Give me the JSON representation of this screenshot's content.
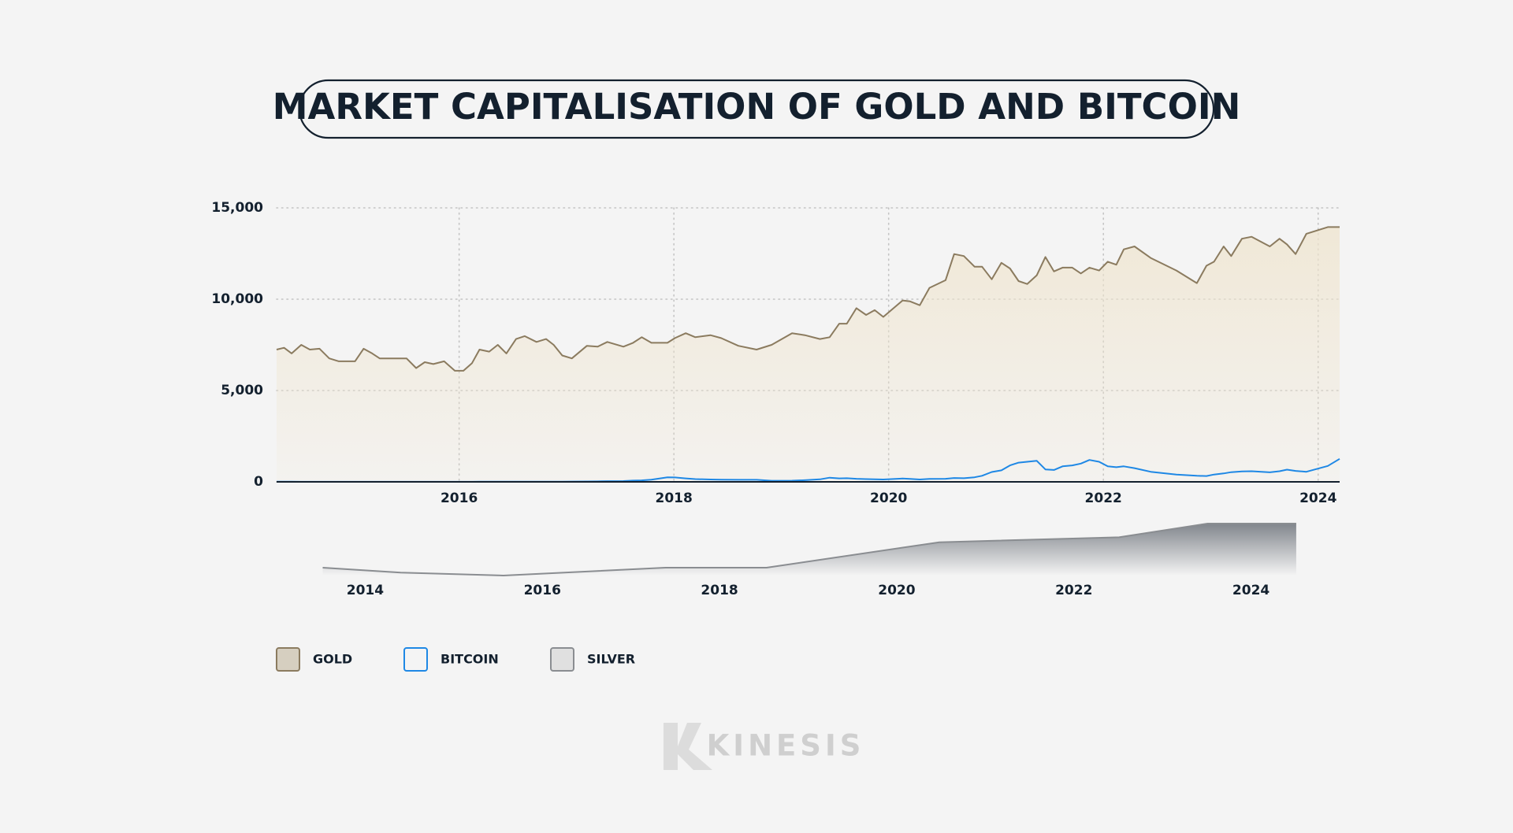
{
  "chart_data": [
    {
      "type": "area",
      "title": "MARKET CAPITALISATION OF GOLD AND BITCOIN",
      "x": [
        2014.3,
        2014.37,
        2014.44,
        2014.53,
        2014.61,
        2014.7,
        2014.79,
        2014.88,
        2015.03,
        2015.11,
        2015.19,
        2015.26,
        2015.51,
        2015.6,
        2015.68,
        2015.76,
        2015.86,
        2015.96,
        2016.04,
        2016.12,
        2016.19,
        2016.28,
        2016.36,
        2016.44,
        2016.53,
        2016.61,
        2016.72,
        2016.81,
        2016.88,
        2016.96,
        2017.05,
        2017.19,
        2017.29,
        2017.38,
        2017.53,
        2017.62,
        2017.7,
        2017.79,
        2017.94,
        2018.01,
        2018.11,
        2018.2,
        2018.34,
        2018.44,
        2018.6,
        2018.77,
        2018.91,
        2019.1,
        2019.22,
        2019.36,
        2019.45,
        2019.54,
        2019.61,
        2019.7,
        2019.79,
        2019.87,
        2019.95,
        2020.13,
        2020.2,
        2020.29,
        2020.38,
        2020.53,
        2020.61,
        2020.7,
        2020.8,
        2020.87,
        2020.96,
        2021.05,
        2021.13,
        2021.21,
        2021.29,
        2021.38,
        2021.46,
        2021.54,
        2021.62,
        2021.71,
        2021.79,
        2021.87,
        2021.96,
        2022.04,
        2022.12,
        2022.19,
        2022.29,
        2022.44,
        2022.68,
        2022.87,
        2022.96,
        2023.03,
        2023.12,
        2023.19,
        2023.29,
        2023.38,
        2023.55,
        2023.64,
        2023.71,
        2023.79,
        2023.89,
        2024.09,
        2024.2
      ],
      "series": [
        {
          "name": "GOLD",
          "color": "#8b7b5f",
          "fill_color": "#d6cfc0",
          "area": true,
          "values": [
            7240,
            7340,
            7030,
            7500,
            7240,
            7290,
            6760,
            6600,
            6600,
            7290,
            7030,
            6760,
            6760,
            6230,
            6550,
            6450,
            6600,
            6080,
            6080,
            6500,
            7240,
            7130,
            7500,
            7030,
            7820,
            7980,
            7660,
            7820,
            7500,
            6920,
            6760,
            7450,
            7400,
            7660,
            7400,
            7610,
            7920,
            7610,
            7610,
            7870,
            8140,
            7920,
            8030,
            7870,
            7450,
            7240,
            7500,
            8140,
            8030,
            7820,
            7920,
            8660,
            8660,
            9510,
            9140,
            9400,
            9030,
            9930,
            9880,
            9670,
            10620,
            11040,
            12470,
            12360,
            11780,
            11780,
            11090,
            11990,
            11680,
            10990,
            10830,
            11310,
            12310,
            11520,
            11730,
            11730,
            11410,
            11730,
            11570,
            12050,
            11890,
            12730,
            12890,
            12260,
            11570,
            10880,
            11830,
            12050,
            12890,
            12360,
            13310,
            13420,
            12890,
            13310,
            13000,
            12470,
            13580,
            13950,
            13950
          ]
        },
        {
          "name": "BITCOIN",
          "color": "#1e88e5",
          "fill_color": "#f4f4f4",
          "area": false,
          "values": [
            8,
            8,
            7,
            6,
            5,
            5,
            5,
            4,
            3,
            4,
            3,
            3,
            3,
            4,
            5,
            5,
            6,
            6,
            6,
            6,
            7,
            7,
            8,
            9,
            11,
            10,
            10,
            11,
            12,
            15,
            17,
            20,
            25,
            40,
            45,
            70,
            80,
            120,
            250,
            240,
            190,
            150,
            130,
            120,
            110,
            110,
            60,
            65,
            90,
            140,
            230,
            190,
            200,
            170,
            150,
            140,
            130,
            180,
            160,
            130,
            160,
            170,
            210,
            200,
            250,
            330,
            540,
            630,
            900,
            1050,
            1100,
            1150,
            680,
            650,
            850,
            900,
            1000,
            1200,
            1100,
            850,
            800,
            850,
            750,
            550,
            400,
            330,
            320,
            400,
            460,
            530,
            570,
            580,
            520,
            580,
            670,
            600,
            550,
            870,
            1260
          ]
        }
      ],
      "xlim": [
        2014.3,
        2024.2
      ],
      "xticks": [
        2016,
        2018,
        2020,
        2022,
        2024
      ],
      "ylim": [
        0,
        15000
      ],
      "yticks": [
        0,
        {
          "value": 5000,
          "label": "5,000"
        },
        {
          "value": 10000,
          "label": "10,000"
        },
        {
          "value": 15000,
          "label": "15,000"
        }
      ],
      "grid": true
    },
    {
      "type": "area",
      "x": [
        2013.52,
        2014.4,
        2015.56,
        2017.39,
        2018.53,
        2020.48,
        2022.51,
        2023.51,
        2024.51
      ],
      "series": [
        {
          "name": "SILVER",
          "color": "#8a8d91",
          "fill_color": "#e0e0e0",
          "area": true,
          "values": [
            7210,
            6450,
            6000,
            7210,
            7210,
            11130,
            11890,
            14000,
            14000
          ]
        }
      ],
      "xlim": [
        2013,
        2025
      ],
      "xticks": [
        2014,
        2016,
        2018,
        2020,
        2022,
        2024
      ],
      "ylim": [
        6000,
        14000
      ],
      "grid": false
    }
  ],
  "footer": {
    "brand": "KINESIS"
  }
}
